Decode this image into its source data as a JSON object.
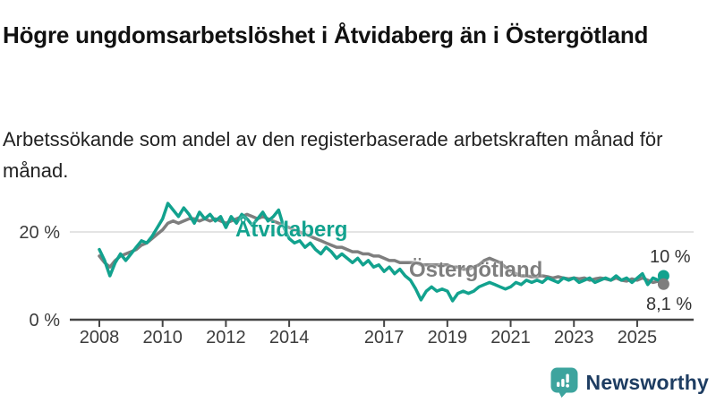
{
  "header": {
    "title": "Högre ungdomsarbetslöshet i Åtvidaberg än i Östergötland",
    "subtitle": "Arbetssökande som andel av den registerbaserade arbetskraften månad för månad."
  },
  "chart_data": {
    "type": "line",
    "title": "Högre ungdomsarbetslöshet i Åtvidaberg än i Östergötland",
    "unit": "%",
    "x_start": 2008,
    "x_step": 0.1666667,
    "x_ticks": [
      2008,
      2010,
      2012,
      2014,
      2017,
      2019,
      2021,
      2023,
      2025
    ],
    "y_ticks": [
      {
        "value": 0,
        "label": "0 %"
      },
      {
        "value": 20,
        "label": "20 %"
      }
    ],
    "ylim": [
      0,
      29
    ],
    "grid": "horizontal-20-only",
    "legend_position": "inline-labels",
    "series": [
      {
        "name": "Åtvidaberg",
        "color": "#12a28e",
        "end_label": "10 %",
        "end_value": 10,
        "values": [
          16.0,
          13.5,
          10.0,
          13.0,
          15.0,
          13.5,
          15.0,
          16.5,
          18.0,
          17.5,
          19.0,
          21.0,
          23.0,
          26.5,
          25.0,
          23.5,
          25.5,
          24.0,
          22.0,
          24.5,
          23.0,
          24.0,
          22.5,
          23.5,
          21.0,
          23.5,
          22.0,
          24.0,
          23.0,
          21.5,
          23.0,
          24.5,
          22.5,
          23.5,
          25.0,
          21.0,
          18.5,
          17.5,
          18.0,
          16.5,
          17.5,
          16.0,
          15.0,
          16.5,
          15.5,
          14.0,
          15.0,
          14.0,
          13.0,
          14.0,
          12.5,
          13.5,
          12.0,
          12.5,
          11.0,
          12.0,
          10.5,
          11.5,
          10.0,
          9.0,
          7.0,
          4.5,
          6.5,
          7.5,
          6.5,
          7.0,
          6.5,
          4.3,
          6.0,
          6.5,
          6.0,
          6.5,
          7.5,
          8.0,
          8.5,
          8.0,
          7.5,
          7.0,
          7.5,
          8.5,
          8.0,
          9.0,
          8.5,
          9.0,
          8.5,
          9.5,
          9.0,
          8.5,
          9.5,
          9.0,
          9.5,
          8.5,
          9.0,
          9.5,
          8.5,
          9.0,
          9.5,
          9.0,
          10.0,
          9.0,
          9.5,
          8.5,
          9.5,
          10.5,
          8.0,
          9.5,
          9.0,
          10.0
        ]
      },
      {
        "name": "Östergötland",
        "color": "#7e7e7e",
        "end_label": "8,1 %",
        "end_value": 8.1,
        "values": [
          14.5,
          13.0,
          12.0,
          13.5,
          14.5,
          15.0,
          15.5,
          16.0,
          17.0,
          17.5,
          18.5,
          19.5,
          20.5,
          22.0,
          22.5,
          22.0,
          22.5,
          23.0,
          23.0,
          22.5,
          23.0,
          22.5,
          23.0,
          22.5,
          22.0,
          22.5,
          23.0,
          23.5,
          24.0,
          23.5,
          23.0,
          23.5,
          23.0,
          22.5,
          22.0,
          21.5,
          21.0,
          20.5,
          20.0,
          19.5,
          19.0,
          18.5,
          18.0,
          17.5,
          17.0,
          16.5,
          16.5,
          16.0,
          15.5,
          15.5,
          15.0,
          15.0,
          14.5,
          14.5,
          14.0,
          13.5,
          13.5,
          13.0,
          13.0,
          13.0,
          13.0,
          12.5,
          12.5,
          12.5,
          12.5,
          12.5,
          12.5,
          12.0,
          12.0,
          11.5,
          11.5,
          12.0,
          12.5,
          13.5,
          14.0,
          13.5,
          13.0,
          12.0,
          11.0,
          10.5,
          10.0,
          10.0,
          9.8,
          9.8,
          10.0,
          9.8,
          9.5,
          9.8,
          9.5,
          9.3,
          9.5,
          9.3,
          9.5,
          9.0,
          9.3,
          9.5,
          9.3,
          9.0,
          9.5,
          9.0,
          8.8,
          9.3,
          9.0,
          9.5,
          9.0,
          8.5,
          8.8,
          8.1
        ]
      }
    ],
    "colors": {
      "gridline": "#dcdcdc",
      "axis": "#454545",
      "axis_text": "#3c3c3c"
    }
  },
  "branding": {
    "logo_text": "Newsworthy",
    "logo_icon": "bar-chart-speech-bubble-icon",
    "icon_color": "#3da49e",
    "text_color": "#1e3d62"
  }
}
